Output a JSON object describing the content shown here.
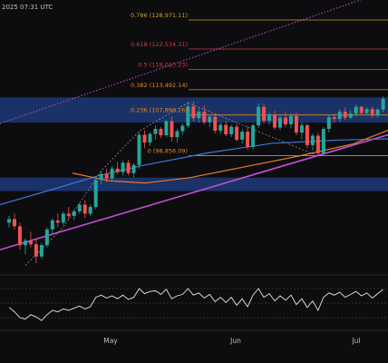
{
  "header": {
    "timestamp": "2025 07:31 UTC"
  },
  "colors": {
    "background": "#0d0d0f",
    "up": "#26a69a",
    "down": "#ef5350",
    "zone": "#1e3a78",
    "fib_0786": "#c9a227",
    "fib_0618": "#d2374a",
    "fib_05": "#d2374a",
    "fib_0382": "#e08a2a",
    "fib_0236": "#e08a2a",
    "fib_0": "#e08a2a",
    "ema_orange": "#e8792b",
    "ema_blue": "#3a78d6",
    "trend_magenta": "#c64fd6",
    "rsi": "#e6e6e6"
  },
  "chart_data": {
    "type": "candlestick",
    "x_labels": [
      "May",
      "Jun",
      "Jul"
    ],
    "fib_levels": [
      {
        "label": "0.786 (128,971.11)",
        "value": 128971.11
      },
      {
        "label": "0.618 (122,534.31)",
        "value": 122534.31
      },
      {
        "label": "0.5 (118,013.23)",
        "value": 118013.23
      },
      {
        "label": "0.382 (113,492.14)",
        "value": 113492.14
      },
      {
        "label": "0.236 (107,898.26)",
        "value": 107898.26
      },
      {
        "label": "0 (98,856.09)",
        "value": 98856.09
      }
    ],
    "zones": [
      {
        "name": "upper-zone",
        "from": 106200,
        "to": 111800
      },
      {
        "name": "lower-zone",
        "from": 91000,
        "to": 94000
      }
    ],
    "price_range": [
      73000,
      133000
    ],
    "candles": [
      [
        84000,
        85500,
        83000,
        84800
      ],
      [
        84800,
        86000,
        82500,
        83200
      ],
      [
        83200,
        84000,
        78000,
        79000
      ],
      [
        79000,
        80500,
        77000,
        80000
      ],
      [
        80000,
        82000,
        78500,
        79200
      ],
      [
        79200,
        80500,
        75000,
        76500
      ],
      [
        76500,
        79500,
        76000,
        79000
      ],
      [
        79000,
        83000,
        78500,
        82500
      ],
      [
        82500,
        85000,
        81500,
        84500
      ],
      [
        84500,
        86000,
        83000,
        84000
      ],
      [
        84000,
        86500,
        83500,
        86000
      ],
      [
        86000,
        87500,
        84800,
        85500
      ],
      [
        85500,
        87000,
        84500,
        86500
      ],
      [
        86500,
        88500,
        86000,
        88000
      ],
      [
        88000,
        89000,
        85000,
        86000
      ],
      [
        86000,
        88000,
        85500,
        87500
      ],
      [
        87500,
        94000,
        87000,
        93500
      ],
      [
        93500,
        95500,
        92500,
        94800
      ],
      [
        94800,
        96000,
        93000,
        93800
      ],
      [
        93800,
        96500,
        93000,
        96000
      ],
      [
        96000,
        97500,
        94800,
        95200
      ],
      [
        95200,
        97800,
        94500,
        97300
      ],
      [
        97300,
        98000,
        94500,
        95000
      ],
      [
        95000,
        97200,
        94000,
        96800
      ],
      [
        96800,
        104000,
        96000,
        103500
      ],
      [
        103500,
        104500,
        100500,
        101800
      ],
      [
        101800,
        104000,
        101000,
        103700
      ],
      [
        103700,
        105500,
        102500,
        104800
      ],
      [
        104800,
        105200,
        102800,
        103400
      ],
      [
        103400,
        106800,
        103000,
        106500
      ],
      [
        106500,
        107500,
        102000,
        103000
      ],
      [
        103000,
        104800,
        101800,
        104300
      ],
      [
        104300,
        106000,
        103500,
        105500
      ],
      [
        105500,
        110500,
        105000,
        109800
      ],
      [
        109800,
        111000,
        106500,
        107200
      ],
      [
        107200,
        109500,
        106200,
        108600
      ],
      [
        108600,
        110000,
        105800,
        106300
      ],
      [
        106300,
        107900,
        105200,
        107500
      ],
      [
        107500,
        108000,
        103800,
        104400
      ],
      [
        104400,
        106200,
        103700,
        105700
      ],
      [
        105700,
        106500,
        103200,
        103600
      ],
      [
        103600,
        105700,
        103000,
        105300
      ],
      [
        105300,
        106000,
        102000,
        102400
      ],
      [
        102400,
        104800,
        101500,
        104200
      ],
      [
        104200,
        105500,
        100200,
        100800
      ],
      [
        100800,
        106000,
        100200,
        105600
      ],
      [
        105600,
        110500,
        105000,
        109700
      ],
      [
        109700,
        110300,
        106000,
        106600
      ],
      [
        106600,
        108500,
        105800,
        108000
      ],
      [
        108000,
        108800,
        104600,
        105100
      ],
      [
        105100,
        107800,
        104500,
        107300
      ],
      [
        107300,
        108500,
        105200,
        105800
      ],
      [
        105800,
        108300,
        105000,
        107700
      ],
      [
        107700,
        108400,
        103400,
        104000
      ],
      [
        104000,
        106200,
        102500,
        105600
      ],
      [
        105600,
        106000,
        100500,
        101200
      ],
      [
        101200,
        103800,
        100000,
        103300
      ],
      [
        103300,
        104000,
        98800,
        99400
      ],
      [
        99400,
        105200,
        99000,
        104800
      ],
      [
        104800,
        108000,
        104000,
        107400
      ],
      [
        107400,
        108200,
        106200,
        107000
      ],
      [
        107000,
        109200,
        106300,
        108600
      ],
      [
        108600,
        109500,
        106800,
        107300
      ],
      [
        107300,
        109000,
        107000,
        108200
      ],
      [
        108200,
        110200,
        107600,
        109700
      ],
      [
        109700,
        109900,
        107800,
        108300
      ],
      [
        108300,
        109600,
        107900,
        109200
      ],
      [
        109200,
        109800,
        107200,
        107800
      ],
      [
        107800,
        109500,
        107200,
        109100
      ],
      [
        109100,
        112000,
        108500,
        111500
      ]
    ],
    "rsi": {
      "range": [
        20,
        80
      ],
      "levels": [
        30,
        50,
        70
      ],
      "values": [
        44,
        38,
        30,
        28,
        34,
        31,
        26,
        34,
        40,
        38,
        42,
        40,
        43,
        46,
        42,
        45,
        58,
        61,
        57,
        60,
        56,
        61,
        55,
        58,
        70,
        63,
        66,
        67,
        62,
        69,
        56,
        60,
        62,
        70,
        61,
        64,
        57,
        62,
        52,
        58,
        51,
        58,
        47,
        56,
        45,
        61,
        70,
        58,
        63,
        53,
        60,
        54,
        61,
        48,
        56,
        44,
        53,
        40,
        58,
        64,
        61,
        65,
        58,
        62,
        66,
        60,
        64,
        57,
        63,
        69
      ]
    }
  }
}
